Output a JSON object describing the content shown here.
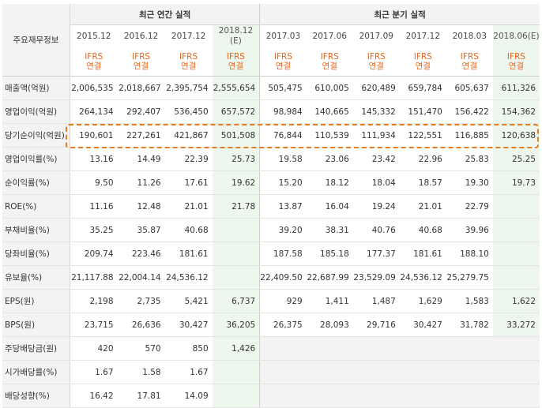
{
  "header": {
    "item_label": "주요재무정보",
    "annual_group": "최근 연간 실적",
    "quarter_group": "최근 분기 실적",
    "annual_periods": [
      "2015.12",
      "2016.12",
      "2017.12",
      "2018.12\n(E)"
    ],
    "quarter_periods": [
      "2017.03",
      "2017.06",
      "2017.09",
      "2017.12",
      "2018.03",
      "2018.06(E)"
    ],
    "basis_top": "IFRS",
    "basis_bottom": "연결"
  },
  "rows": [
    {
      "label": "매출액(억원)",
      "annual": [
        "2,006,535",
        "2,018,667",
        "2,395,754",
        "2,555,654"
      ],
      "quarter": [
        "505,475",
        "610,005",
        "620,489",
        "659,784",
        "605,637",
        "611,326"
      ]
    },
    {
      "label": "영업이익(억원)",
      "annual": [
        "264,134",
        "292,407",
        "536,450",
        "657,572"
      ],
      "quarter": [
        "98,984",
        "140,665",
        "145,332",
        "151,470",
        "156,422",
        "154,362"
      ]
    },
    {
      "label": "당기순이익(억원)",
      "annual": [
        "190,601",
        "227,261",
        "421,867",
        "501,508"
      ],
      "quarter": [
        "76,844",
        "110,539",
        "111,934",
        "122,551",
        "116,885",
        "120,638"
      ]
    },
    {
      "label": "영업이익률(%)",
      "annual": [
        "13.16",
        "14.49",
        "22.39",
        "25.73"
      ],
      "quarter": [
        "19.58",
        "23.06",
        "23.42",
        "22.96",
        "25.83",
        "25.25"
      ]
    },
    {
      "label": "순이익률(%)",
      "annual": [
        "9.50",
        "11.26",
        "17.61",
        "19.62"
      ],
      "quarter": [
        "15.20",
        "18.12",
        "18.04",
        "18.57",
        "19.30",
        "19.73"
      ]
    },
    {
      "label": "ROE(%)",
      "annual": [
        "11.16",
        "12.48",
        "21.01",
        "21.78"
      ],
      "quarter": [
        "13.87",
        "16.04",
        "19.24",
        "21.01",
        "22.79",
        ""
      ]
    },
    {
      "label": "부채비율(%)",
      "annual": [
        "35.25",
        "35.87",
        "40.68",
        ""
      ],
      "quarter": [
        "39.20",
        "38.31",
        "40.76",
        "40.68",
        "39.96",
        ""
      ]
    },
    {
      "label": "당좌비율(%)",
      "annual": [
        "209.74",
        "223.46",
        "181.61",
        ""
      ],
      "quarter": [
        "187.58",
        "185.18",
        "177.37",
        "181.61",
        "188.10",
        ""
      ]
    },
    {
      "label": "유보율(%)",
      "annual": [
        "21,117.88",
        "22,004.14",
        "24,536.12",
        ""
      ],
      "quarter": [
        "22,409.50",
        "22,687.99",
        "23,529.09",
        "24,536.12",
        "25,279.75",
        ""
      ]
    },
    {
      "label": "EPS(원)",
      "annual": [
        "2,198",
        "2,735",
        "5,421",
        "6,737"
      ],
      "quarter": [
        "929",
        "1,411",
        "1,487",
        "1,629",
        "1,583",
        "1,622"
      ]
    },
    {
      "label": "BPS(원)",
      "annual": [
        "23,715",
        "26,636",
        "30,427",
        "36,205"
      ],
      "quarter": [
        "26,375",
        "28,093",
        "29,716",
        "30,427",
        "31,782",
        "33,272"
      ]
    },
    {
      "label": "주당배당금(원)",
      "annual": [
        "420",
        "570",
        "850",
        "1,426"
      ],
      "quarter": [
        "",
        "",
        "",
        "",
        "",
        ""
      ]
    },
    {
      "label": "시가배당률(%)",
      "annual": [
        "1.67",
        "1.58",
        "1.67",
        ""
      ],
      "quarter": [
        "",
        "",
        "",
        "",
        "",
        ""
      ]
    },
    {
      "label": "배당성향(%)",
      "annual": [
        "16.42",
        "17.81",
        "14.09",
        ""
      ],
      "quarter": [
        "",
        "",
        "",
        "",
        "",
        ""
      ]
    }
  ],
  "colors": {
    "estimate_bg": "#eef7ee",
    "ifrs_text": "#e8651c",
    "highlight_border": "#e87b1a"
  }
}
